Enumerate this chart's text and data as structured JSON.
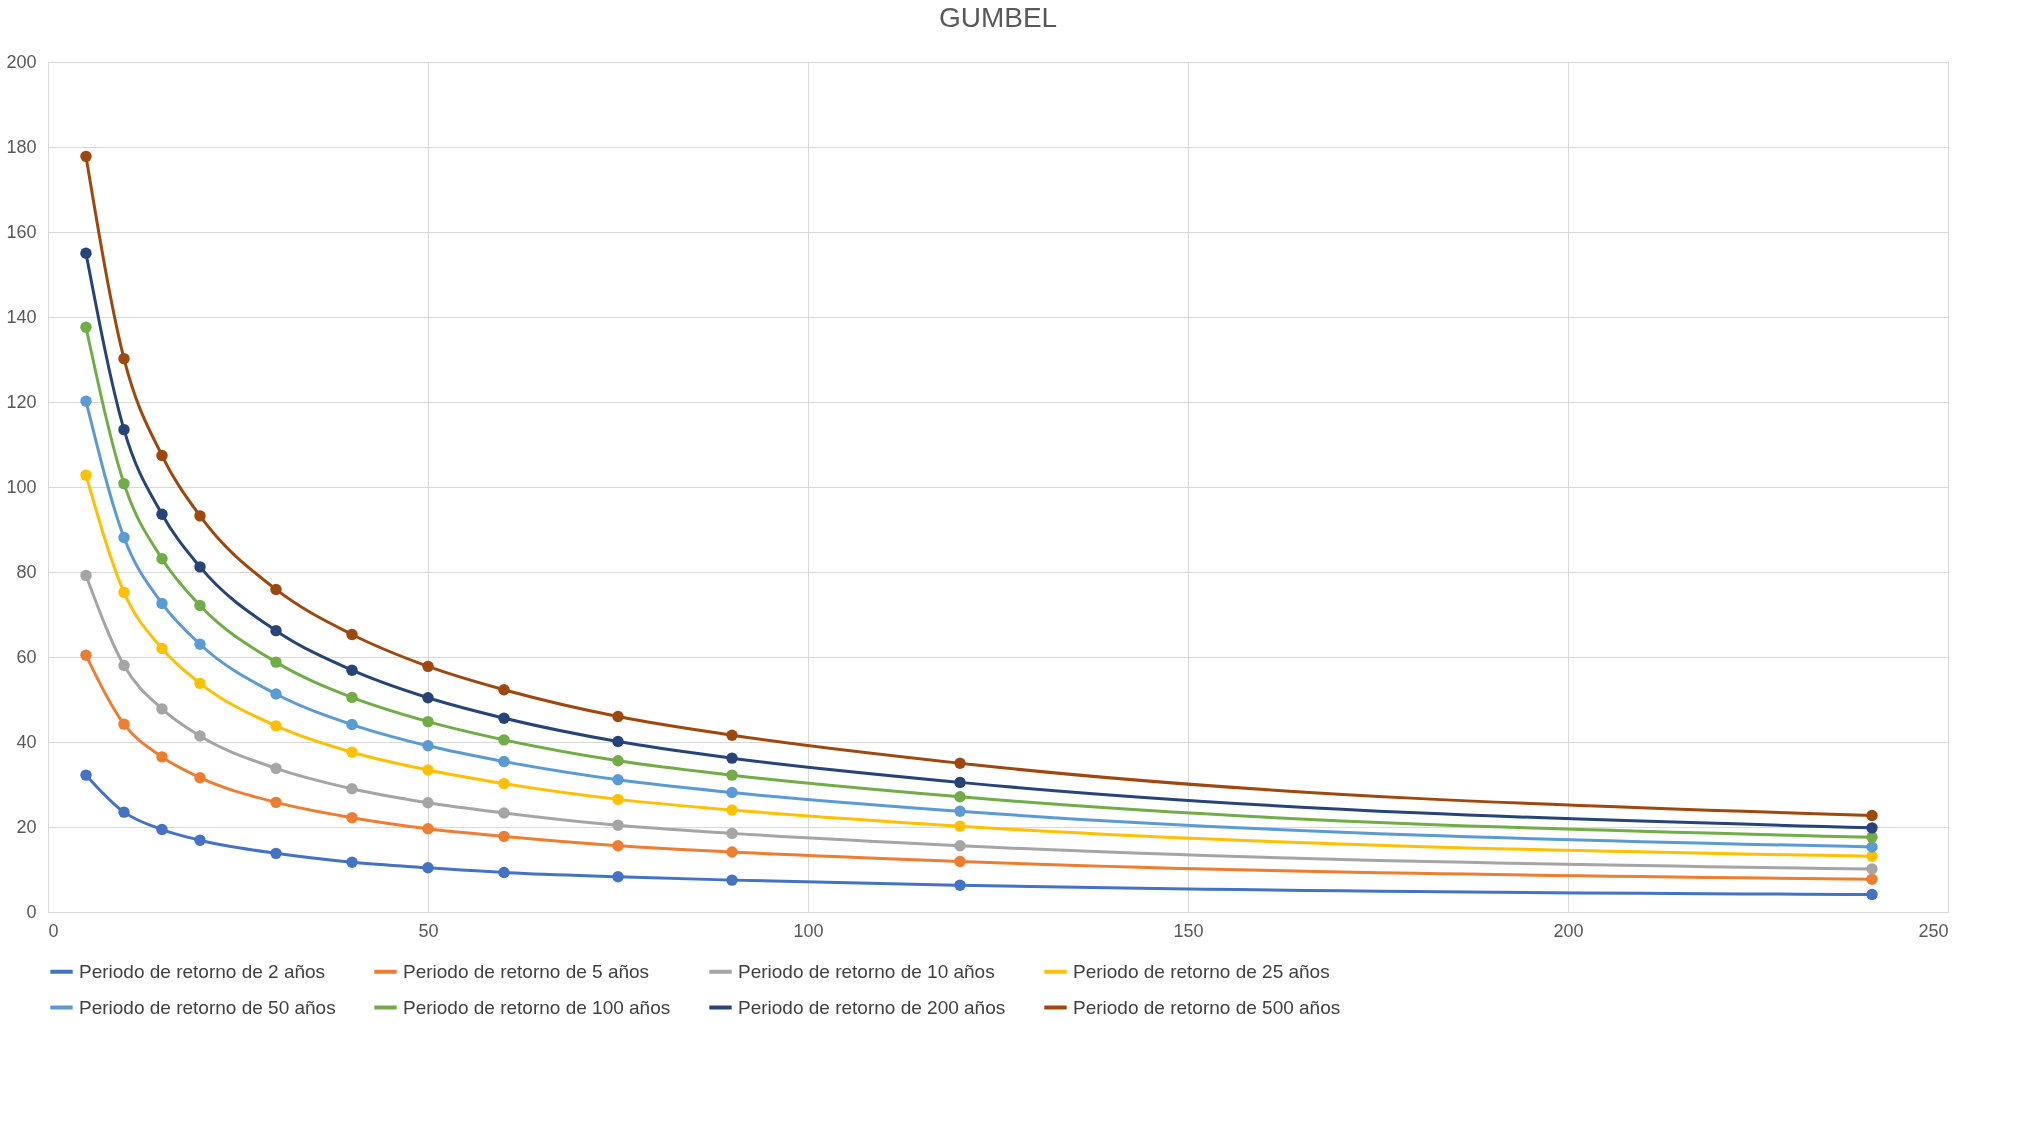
{
  "chart_data": {
    "type": "line",
    "title": "GUMBEL",
    "x": [
      5,
      10,
      15,
      20,
      30,
      40,
      50,
      60,
      75,
      90,
      120,
      240
    ],
    "xlim": [
      0,
      250
    ],
    "xticks": [
      0,
      50,
      100,
      150,
      200,
      250
    ],
    "ylim": [
      0,
      200
    ],
    "yticks": [
      0,
      20,
      40,
      60,
      80,
      100,
      120,
      140,
      160,
      180,
      200
    ],
    "grid": true,
    "legend": "bottom",
    "marker": "circle",
    "line_style": "solid",
    "series": [
      {
        "name": "Periodo de retorno de 2 años",
        "color": "#4472c4",
        "values": [
          32.2,
          23.5,
          19.4,
          16.9,
          13.8,
          11.7,
          10.4,
          9.3,
          8.3,
          7.5,
          6.3,
          4.1
        ]
      },
      {
        "name": "Periodo de retorno de 5 años",
        "color": "#ed7d31",
        "values": [
          60.4,
          44.2,
          36.5,
          31.6,
          25.8,
          22.2,
          19.6,
          17.8,
          15.6,
          14.1,
          11.9,
          7.7
        ]
      },
      {
        "name": "Periodo de retorno de 10 años",
        "color": "#a5a5a5",
        "values": [
          79.2,
          58.0,
          47.8,
          41.4,
          33.8,
          29.0,
          25.7,
          23.3,
          20.4,
          18.5,
          15.6,
          10.1
        ]
      },
      {
        "name": "Periodo de retorno de 25 años",
        "color": "#ffc000",
        "values": [
          102.8,
          75.2,
          62.0,
          53.8,
          43.8,
          37.6,
          33.4,
          30.2,
          26.5,
          24.0,
          20.2,
          13.1
        ]
      },
      {
        "name": "Periodo de retorno de 50 años",
        "color": "#5b9bd5",
        "values": [
          120.2,
          88.1,
          72.6,
          63.0,
          51.3,
          44.1,
          39.1,
          35.4,
          31.1,
          28.1,
          23.7,
          15.3
        ]
      },
      {
        "name": "Periodo de retorno de 100 años",
        "color": "#70ad47",
        "values": [
          137.6,
          100.8,
          83.1,
          72.1,
          58.8,
          50.5,
          44.8,
          40.5,
          35.6,
          32.2,
          27.1,
          17.6
        ]
      },
      {
        "name": "Periodo de retorno de 200 años",
        "color": "#264478",
        "values": [
          155.0,
          113.5,
          93.6,
          81.2,
          66.2,
          56.9,
          50.4,
          45.6,
          40.1,
          36.2,
          30.5,
          19.8
        ]
      },
      {
        "name": "Periodo de retorno de 500 años",
        "color": "#9e480e",
        "values": [
          177.8,
          130.2,
          107.4,
          93.2,
          75.9,
          65.3,
          57.8,
          52.3,
          46.0,
          41.6,
          35.0,
          22.7
        ]
      }
    ]
  }
}
